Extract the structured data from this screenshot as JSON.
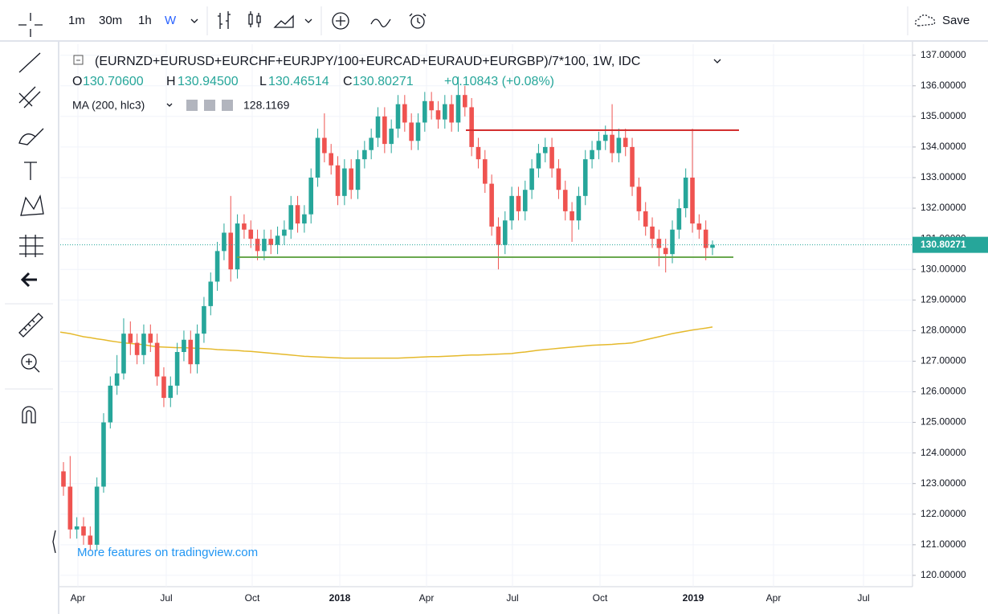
{
  "toolbar": {
    "intervals": [
      "1m",
      "30m",
      "1h",
      "W"
    ],
    "save": "Save"
  },
  "watermark": "More features on tradingview.com",
  "chart_data": {
    "type": "candlestick",
    "title": "(EURNZD+EURUSD+EURCHF+EURJPY/100+EURCAD+EURAUD+EURGBP)/7*100, 1W, IDC",
    "ohlc_letters": [
      "O",
      "H",
      "L",
      "C"
    ],
    "ohlc_labels": [
      "130.70600",
      "130.94500",
      "130.46514",
      "130.80271"
    ],
    "change_label": "+0.10843 (+0.08%)",
    "colors": {
      "up": "#26a69a",
      "down": "#ef5350"
    },
    "xticks": [
      "Apr",
      "Jul",
      "Oct",
      "2018",
      "Apr",
      "Jul",
      "Oct",
      "2019",
      "Apr",
      "Jul"
    ],
    "ylim": [
      119.63,
      137.36
    ],
    "yticks": [
      {
        "value": 120,
        "label": "120.00000"
      },
      {
        "value": 121,
        "label": "121.00000"
      },
      {
        "value": 122,
        "label": "122.00000"
      },
      {
        "value": 123,
        "label": "123.00000"
      },
      {
        "value": 124,
        "label": "124.00000"
      },
      {
        "value": 125,
        "label": "125.00000"
      },
      {
        "value": 126,
        "label": "126.00000"
      },
      {
        "value": 127,
        "label": "127.00000"
      },
      {
        "value": 128,
        "label": "128.00000"
      },
      {
        "value": 129,
        "label": "129.00000"
      },
      {
        "value": 130,
        "label": "130.00000"
      },
      {
        "value": 131,
        "label": "131.00000"
      },
      {
        "value": 132,
        "label": "132.00000"
      },
      {
        "value": 133,
        "label": "133.00000"
      },
      {
        "value": 134,
        "label": "134.00000"
      },
      {
        "value": 135,
        "label": "135.00000"
      },
      {
        "value": 136,
        "label": "136.00000"
      },
      {
        "value": 137,
        "label": "137.00000"
      }
    ],
    "grid": true,
    "open": [
      123.4,
      122.9,
      121.5,
      121.6,
      121.3,
      121.0,
      122.9,
      125.0,
      126.2,
      126.6,
      127.9,
      127.6,
      127.2,
      127.9,
      127.6,
      126.5,
      125.8,
      126.2,
      127.3,
      127.7,
      126.9,
      127.9,
      128.8,
      129.6,
      130.6,
      131.2,
      130.0,
      131.5,
      131.3,
      131.0,
      130.6,
      131.0,
      130.8,
      131.1,
      131.3,
      132.1,
      131.5,
      131.8,
      133.0,
      134.3,
      133.8,
      133.4,
      132.4,
      133.3,
      132.6,
      133.6,
      133.9,
      134.3,
      135.0,
      134.1,
      134.6,
      135.4,
      134.8,
      134.2,
      134.8,
      135.5,
      135.2,
      134.9,
      135.4,
      134.8,
      135.7,
      135.3,
      134.0,
      133.6,
      132.8,
      131.4,
      130.8,
      131.6,
      132.4,
      131.9,
      132.6,
      133.3,
      133.8,
      134.0,
      133.3,
      132.6,
      131.9,
      131.6,
      132.4,
      133.6,
      133.9,
      134.2,
      134.4,
      133.8,
      134.3,
      134.0,
      132.7,
      131.9,
      131.4,
      131.0,
      130.7,
      130.5,
      131.3,
      132.0,
      133.0,
      131.5,
      131.3,
      130.706
    ],
    "high": [
      123.7,
      123.9,
      121.9,
      121.9,
      121.6,
      123.2,
      125.3,
      126.5,
      127.2,
      128.4,
      128.3,
      127.9,
      128.2,
      128.2,
      127.9,
      126.8,
      126.5,
      127.6,
      128.0,
      128.0,
      128.2,
      129.1,
      129.9,
      130.9,
      131.5,
      132.4,
      131.8,
      131.8,
      131.6,
      131.3,
      131.3,
      131.3,
      131.4,
      131.6,
      132.4,
      132.4,
      132.1,
      133.3,
      134.6,
      135.1,
      134.1,
      133.7,
      133.6,
      133.6,
      133.9,
      134.2,
      134.6,
      135.3,
      135.3,
      134.9,
      135.7,
      135.7,
      135.1,
      135.1,
      135.8,
      135.8,
      135.5,
      135.7,
      135.7,
      136.3,
      136.0,
      135.6,
      134.3,
      133.9,
      133.1,
      131.7,
      131.9,
      132.7,
      132.7,
      132.9,
      133.6,
      134.1,
      134.3,
      134.3,
      133.6,
      132.9,
      132.2,
      132.7,
      133.9,
      134.2,
      134.5,
      134.7,
      135.4,
      134.6,
      134.6,
      134.3,
      133.0,
      132.2,
      131.7,
      131.3,
      131.0,
      131.6,
      132.3,
      133.3,
      134.6,
      131.8,
      131.6,
      130.945
    ],
    "low": [
      122.6,
      121.2,
      121.2,
      121.0,
      120.8,
      120.8,
      122.7,
      124.8,
      125.9,
      126.4,
      127.2,
      126.9,
      126.9,
      127.3,
      126.2,
      125.5,
      125.5,
      125.9,
      127.0,
      126.6,
      126.6,
      127.6,
      128.5,
      129.3,
      130.3,
      129.6,
      129.7,
      131.0,
      130.7,
      130.3,
      130.3,
      130.5,
      130.5,
      130.8,
      131.0,
      131.2,
      131.2,
      131.5,
      132.7,
      133.5,
      133.1,
      132.1,
      132.1,
      132.3,
      132.3,
      133.3,
      133.6,
      134.0,
      133.8,
      133.8,
      134.3,
      134.5,
      133.9,
      133.9,
      134.5,
      134.9,
      134.6,
      134.6,
      134.5,
      134.5,
      135.0,
      133.7,
      133.3,
      132.5,
      131.1,
      130.0,
      130.5,
      131.3,
      131.6,
      131.6,
      132.3,
      133.0,
      133.5,
      133.0,
      132.3,
      131.6,
      130.9,
      131.3,
      132.1,
      133.3,
      133.6,
      133.9,
      133.5,
      133.5,
      133.7,
      132.4,
      131.6,
      131.1,
      130.7,
      130.1,
      129.9,
      130.2,
      131.0,
      131.7,
      131.2,
      131.0,
      130.3,
      130.46514
    ],
    "close": [
      122.9,
      121.5,
      121.6,
      121.3,
      121.0,
      122.9,
      125.0,
      126.2,
      126.6,
      127.9,
      127.6,
      127.2,
      127.9,
      127.6,
      126.5,
      125.8,
      126.2,
      127.3,
      127.7,
      126.9,
      127.9,
      128.8,
      129.6,
      130.6,
      131.2,
      130.0,
      131.5,
      131.3,
      131.0,
      130.6,
      131.0,
      130.8,
      131.1,
      131.3,
      132.1,
      131.5,
      131.8,
      133.0,
      134.3,
      133.8,
      133.4,
      132.4,
      133.3,
      132.6,
      133.6,
      133.9,
      134.3,
      135.0,
      134.1,
      134.6,
      135.4,
      134.8,
      134.2,
      134.8,
      135.5,
      135.2,
      134.9,
      135.4,
      134.8,
      135.7,
      135.3,
      134.0,
      133.6,
      132.8,
      131.4,
      130.8,
      131.6,
      132.4,
      131.9,
      132.6,
      133.3,
      133.8,
      134.0,
      133.3,
      132.6,
      131.9,
      131.6,
      132.4,
      133.6,
      133.9,
      134.2,
      134.4,
      133.8,
      134.3,
      134.0,
      132.7,
      131.9,
      131.4,
      131.0,
      130.7,
      130.5,
      131.3,
      132.0,
      133.0,
      131.5,
      131.3,
      130.7,
      130.80271
    ],
    "ma": {
      "name": "MA (200, hlc3)",
      "color": "#e5b92b",
      "values": [
        127.95,
        127.9,
        127.85,
        127.8,
        127.77,
        127.73,
        127.7,
        127.66,
        127.63,
        127.6,
        127.58,
        127.56,
        127.54,
        127.5,
        127.47,
        127.46,
        127.45,
        127.44,
        127.44,
        127.43,
        127.42,
        127.41,
        127.4,
        127.38,
        127.37,
        127.36,
        127.35,
        127.33,
        127.32,
        127.3,
        127.28,
        127.26,
        127.24,
        127.22,
        127.2,
        127.18,
        127.16,
        127.15,
        127.14,
        127.13,
        127.12,
        127.11,
        127.1,
        127.1,
        127.1,
        127.1,
        127.1,
        127.1,
        127.1,
        127.1,
        127.1,
        127.11,
        127.12,
        127.13,
        127.14,
        127.15,
        127.15,
        127.16,
        127.17,
        127.18,
        127.19,
        127.2,
        127.2,
        127.21,
        127.22,
        127.23,
        127.24,
        127.25,
        127.28,
        127.3,
        127.33,
        127.36,
        127.38,
        127.4,
        127.42,
        127.44,
        127.46,
        127.48,
        127.5,
        127.52,
        127.53,
        127.54,
        127.55,
        127.57,
        127.58,
        127.6,
        127.65,
        127.7,
        127.75,
        127.8,
        127.85,
        127.9,
        127.94,
        127.98,
        128.02,
        128.05,
        128.08,
        128.1169
      ]
    },
    "levels": [
      {
        "value": 134.55,
        "color": "#d32f2f"
      },
      {
        "value": 130.4,
        "color": "#6aa84f"
      }
    ]
  }
}
